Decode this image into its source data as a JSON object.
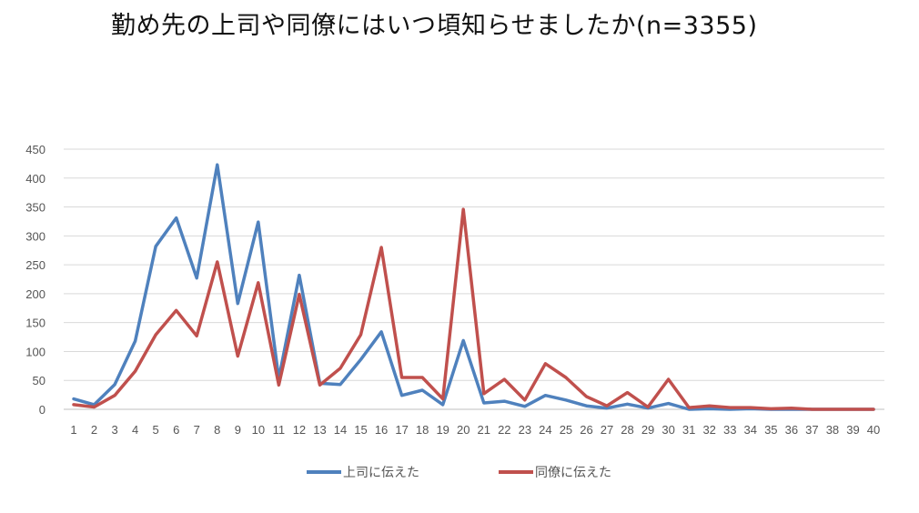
{
  "chart_data": {
    "type": "line",
    "title": "勤め先の上司や同僚にはいつ頃知らせましたか(n=3355)",
    "xlabel": "",
    "ylabel": "",
    "ylim": [
      0,
      450
    ],
    "yticks": [
      0,
      50,
      100,
      150,
      200,
      250,
      300,
      350,
      400,
      450
    ],
    "grid": true,
    "legend_position": "bottom",
    "x": [
      "1",
      "2",
      "3",
      "4",
      "5",
      "6",
      "7",
      "8",
      "9",
      "10",
      "11",
      "12",
      "13",
      "14",
      "15",
      "16",
      "17",
      "18",
      "19",
      "20",
      "21",
      "22",
      "23",
      "24",
      "25",
      "26",
      "27",
      "28",
      "29",
      "30",
      "31",
      "32",
      "33",
      "34",
      "35",
      "36",
      "37",
      "38",
      "39",
      "40"
    ],
    "series": [
      {
        "name": "上司に伝えた",
        "color": "#4f81bd",
        "values": [
          18,
          8,
          43,
          118,
          282,
          331,
          227,
          423,
          183,
          324,
          53,
          232,
          45,
          43,
          86,
          134,
          24,
          33,
          8,
          119,
          11,
          14,
          5,
          24,
          16,
          6,
          2,
          9,
          2,
          10,
          0,
          1,
          0,
          1,
          0,
          0,
          0,
          0,
          0,
          0
        ]
      },
      {
        "name": "同僚に伝えた",
        "color": "#c0504d",
        "values": [
          8,
          4,
          24,
          66,
          129,
          171,
          127,
          255,
          92,
          219,
          42,
          199,
          42,
          71,
          129,
          280,
          55,
          55,
          18,
          346,
          27,
          52,
          16,
          79,
          55,
          22,
          6,
          29,
          4,
          52,
          3,
          6,
          3,
          3,
          1,
          2,
          0,
          0,
          0,
          0
        ]
      }
    ]
  }
}
